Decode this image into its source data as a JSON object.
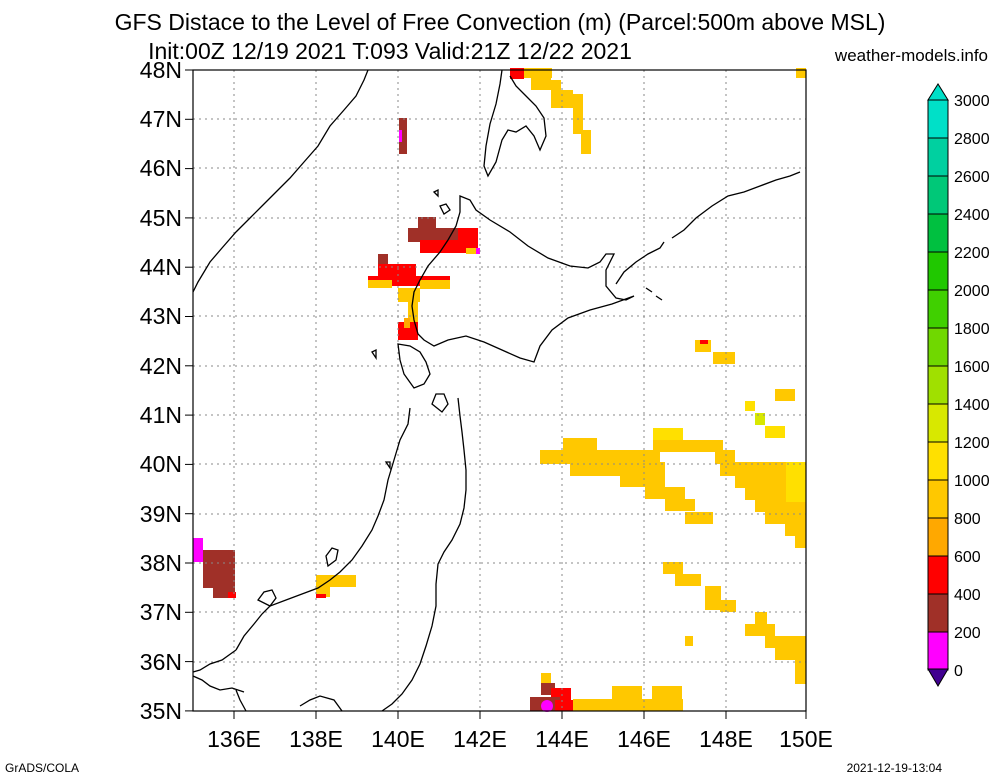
{
  "header": {
    "title_line1": "GFS Distace to the Level of Free Convection (m) (Parcel:500m above MSL)",
    "title_line2": "Init:00Z 12/19 2021 T:093 Valid:21Z 12/22 2021",
    "site": "weather-models.info"
  },
  "footer": {
    "credit": "GrADS/COLA",
    "timestamp": "2021-12-19-13:04"
  },
  "map": {
    "lat_labels": [
      "48N",
      "47N",
      "46N",
      "45N",
      "44N",
      "43N",
      "42N",
      "41N",
      "40N",
      "39N",
      "38N",
      "37N",
      "36N",
      "35N"
    ],
    "lon_labels": [
      "136E",
      "138E",
      "140E",
      "142E",
      "144E",
      "146E",
      "148E",
      "150E"
    ],
    "lat_range": [
      35,
      48
    ],
    "lon_range": [
      135,
      150
    ],
    "grid": "dotted"
  },
  "colorbar": {
    "labels": [
      "3000",
      "2800",
      "2600",
      "2400",
      "2200",
      "2000",
      "1800",
      "1600",
      "1400",
      "1200",
      "1000",
      "800",
      "600",
      "400",
      "200",
      "0"
    ],
    "colors": [
      "#00e0c8",
      "#00d0a0",
      "#00c878",
      "#00c040",
      "#20c800",
      "#40d000",
      "#70d800",
      "#a0e000",
      "#d8e800",
      "#ffe000",
      "#ffc800",
      "#ffa800",
      "#ff0000",
      "#a03028",
      "#ff00ff",
      "#400090"
    ]
  },
  "legend_colors": {
    "c200": "#ff00ff",
    "c400": "#a03028",
    "c600": "#ff0000",
    "c800": "#ffa800",
    "c1000": "#ffc800",
    "c1200": "#ffe000",
    "c1400": "#d8e800",
    "c1600": "#a0e000"
  }
}
